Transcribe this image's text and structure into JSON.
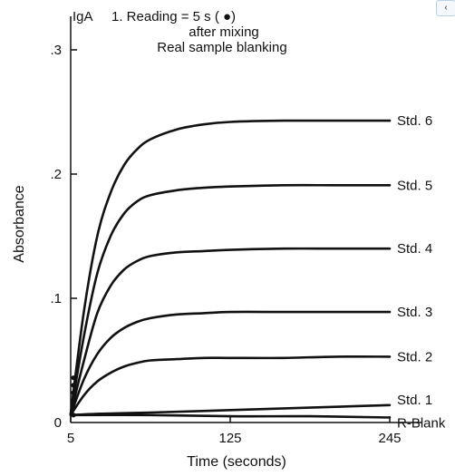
{
  "chart_data": {
    "type": "line",
    "title": "",
    "y_axis_name": "IgA",
    "annotation_lines": [
      "1. Reading = 5 s    ( ●)",
      "after mixing",
      "Real sample blanking"
    ],
    "xlabel": "Time (seconds)",
    "ylabel": "Absorbance",
    "xlim": [
      5,
      260
    ],
    "ylim": [
      0,
      0.33
    ],
    "x_ticks": [
      5,
      125,
      245
    ],
    "x_tick_labels": [
      "5",
      "125",
      "245"
    ],
    "y_ticks": [
      0,
      0.1,
      0.2,
      0.3
    ],
    "y_tick_labels": [
      "0",
      ".1",
      ".2",
      ".3"
    ],
    "grid": false,
    "legend": "none",
    "marker_x": 5,
    "series": [
      {
        "name": "Std. 6",
        "x": [
          5,
          15,
          25,
          35,
          45,
          55,
          65,
          85,
          105,
          125,
          165,
          205,
          245
        ],
        "y": [
          0.007,
          0.09,
          0.15,
          0.185,
          0.207,
          0.22,
          0.228,
          0.236,
          0.24,
          0.242,
          0.243,
          0.243,
          0.243
        ]
      },
      {
        "name": "Std. 5",
        "x": [
          5,
          15,
          25,
          35,
          45,
          55,
          65,
          85,
          105,
          125,
          165,
          205,
          245
        ],
        "y": [
          0.007,
          0.07,
          0.12,
          0.15,
          0.168,
          0.178,
          0.183,
          0.187,
          0.189,
          0.19,
          0.191,
          0.191,
          0.191
        ]
      },
      {
        "name": "Std. 4",
        "x": [
          5,
          15,
          25,
          35,
          45,
          55,
          65,
          85,
          105,
          125,
          165,
          205,
          245
        ],
        "y": [
          0.007,
          0.05,
          0.088,
          0.11,
          0.123,
          0.13,
          0.134,
          0.137,
          0.138,
          0.139,
          0.14,
          0.14,
          0.14
        ]
      },
      {
        "name": "Std. 3",
        "x": [
          5,
          15,
          25,
          35,
          45,
          55,
          65,
          85,
          105,
          125,
          165,
          205,
          245
        ],
        "y": [
          0.006,
          0.035,
          0.055,
          0.068,
          0.076,
          0.081,
          0.084,
          0.087,
          0.088,
          0.089,
          0.089,
          0.089,
          0.089
        ]
      },
      {
        "name": "Std. 2",
        "x": [
          5,
          15,
          25,
          35,
          45,
          55,
          65,
          85,
          105,
          125,
          165,
          205,
          245
        ],
        "y": [
          0.006,
          0.022,
          0.033,
          0.04,
          0.045,
          0.048,
          0.05,
          0.051,
          0.052,
          0.052,
          0.052,
          0.053,
          0.053
        ]
      },
      {
        "name": "Std. 1",
        "x": [
          5,
          25,
          65,
          125,
          185,
          245
        ],
        "y": [
          0.006,
          0.007,
          0.008,
          0.01,
          0.012,
          0.014
        ]
      },
      {
        "name": "R-Blank",
        "x": [
          5,
          65,
          125,
          185,
          245
        ],
        "y": [
          0.006,
          0.006,
          0.005,
          0.005,
          0.004
        ]
      }
    ]
  }
}
